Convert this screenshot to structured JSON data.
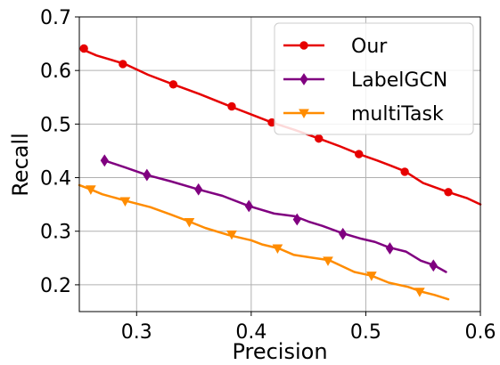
{
  "chart_data": {
    "type": "line",
    "title": "",
    "xlabel": "Precision",
    "ylabel": "Recall",
    "xlim": [
      0.25,
      0.6
    ],
    "ylim": [
      0.15,
      0.7
    ],
    "xticks": [
      "0.3",
      "0.4",
      "0.5",
      "0.6"
    ],
    "yticks": [
      "0.2",
      "0.3",
      "0.4",
      "0.5",
      "0.6",
      "0.7"
    ],
    "xtick_values": [
      0.3,
      0.4,
      0.5,
      0.6
    ],
    "ytick_values": [
      0.2,
      0.3,
      0.4,
      0.5,
      0.6,
      0.7
    ],
    "grid": true,
    "legend_position": "top-right",
    "series": [
      {
        "name": "Our",
        "color": "#e60000",
        "marker": "circle",
        "x": [
          0.252,
          0.265,
          0.29,
          0.31,
          0.332,
          0.355,
          0.383,
          0.4,
          0.418,
          0.438,
          0.459,
          0.478,
          0.494,
          0.51,
          0.521,
          0.534,
          0.55,
          0.572,
          0.588,
          0.6
        ],
        "y": [
          0.64,
          0.628,
          0.612,
          0.592,
          0.574,
          0.556,
          0.532,
          0.518,
          0.503,
          0.489,
          0.473,
          0.458,
          0.444,
          0.432,
          0.423,
          0.412,
          0.39,
          0.373,
          0.362,
          0.35
        ],
        "marker_x": [
          0.254,
          0.288,
          0.332,
          0.383,
          0.418,
          0.459,
          0.494,
          0.534,
          0.572
        ],
        "marker_y": [
          0.641,
          0.612,
          0.574,
          0.533,
          0.503,
          0.473,
          0.444,
          0.411,
          0.373
        ]
      },
      {
        "name": "LabelGCN",
        "color": "#800080",
        "marker": "diamond",
        "x": [
          0.272,
          0.29,
          0.309,
          0.33,
          0.354,
          0.375,
          0.398,
          0.42,
          0.438,
          0.45,
          0.462,
          0.48,
          0.496,
          0.508,
          0.52,
          0.535,
          0.548,
          0.559,
          0.57
        ],
        "y": [
          0.432,
          0.419,
          0.405,
          0.393,
          0.378,
          0.366,
          0.347,
          0.333,
          0.328,
          0.318,
          0.31,
          0.296,
          0.286,
          0.28,
          0.27,
          0.262,
          0.245,
          0.237,
          0.224
        ],
        "marker_x": [
          0.272,
          0.309,
          0.354,
          0.398,
          0.44,
          0.48,
          0.521,
          0.559
        ],
        "marker_y": [
          0.432,
          0.405,
          0.378,
          0.347,
          0.322,
          0.295,
          0.268,
          0.236
        ]
      },
      {
        "name": "multiTask",
        "color": "#ff8c00",
        "marker": "triangle-down",
        "x": [
          0.25,
          0.26,
          0.27,
          0.292,
          0.312,
          0.33,
          0.346,
          0.36,
          0.38,
          0.4,
          0.41,
          0.424,
          0.437,
          0.452,
          0.468,
          0.478,
          0.49,
          0.505,
          0.52,
          0.537,
          0.549,
          0.56,
          0.572
        ],
        "y": [
          0.386,
          0.378,
          0.369,
          0.356,
          0.345,
          0.331,
          0.318,
          0.306,
          0.293,
          0.283,
          0.275,
          0.268,
          0.256,
          0.251,
          0.246,
          0.236,
          0.224,
          0.217,
          0.204,
          0.196,
          0.187,
          0.181,
          0.173
        ],
        "marker_x": [
          0.26,
          0.29,
          0.346,
          0.383,
          0.423,
          0.467,
          0.505,
          0.547
        ],
        "marker_y": [
          0.378,
          0.356,
          0.317,
          0.294,
          0.268,
          0.245,
          0.217,
          0.187
        ]
      }
    ]
  }
}
